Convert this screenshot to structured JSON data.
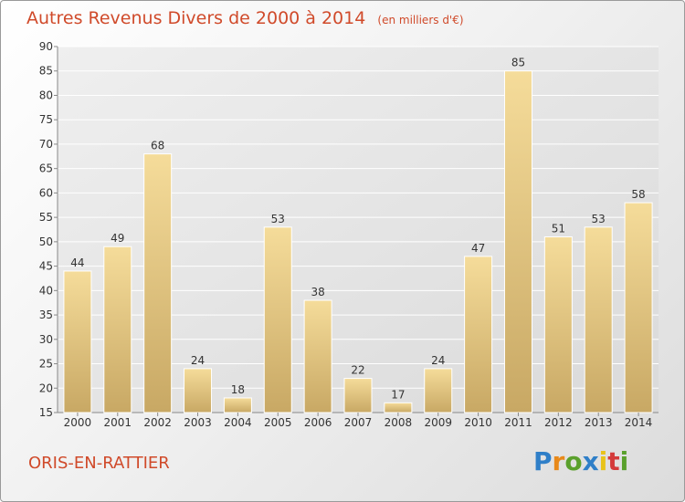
{
  "chart_data": {
    "type": "bar",
    "title": "Autres Revenus Divers de 2000 à 2014",
    "subtitle": "(en milliers d'€)",
    "categories": [
      "2000",
      "2001",
      "2002",
      "2003",
      "2004",
      "2005",
      "2006",
      "2007",
      "2008",
      "2009",
      "2010",
      "2011",
      "2012",
      "2013",
      "2014"
    ],
    "values": [
      44,
      49,
      68,
      24,
      18,
      53,
      38,
      22,
      17,
      24,
      47,
      85,
      51,
      53,
      58
    ],
    "ylim": [
      15,
      90
    ],
    "yticks": [
      15,
      20,
      25,
      30,
      35,
      40,
      45,
      50,
      55,
      60,
      65,
      70,
      75,
      80,
      85,
      90
    ],
    "grid": true,
    "colors": {
      "bar_light": "#f5dc9a",
      "bar_dark": "#c8a864",
      "title": "#d04a2a"
    }
  },
  "footer": {
    "place": "ORIS-EN-RATTIER",
    "logo_letters": [
      "P",
      "r",
      "o",
      "x",
      "i",
      "t",
      "i"
    ],
    "logo_colors": [
      "#2f7fc8",
      "#e8891a",
      "#5aa02c",
      "#2f7fc8",
      "#e8c31a",
      "#d43b3b",
      "#5aa02c"
    ]
  }
}
